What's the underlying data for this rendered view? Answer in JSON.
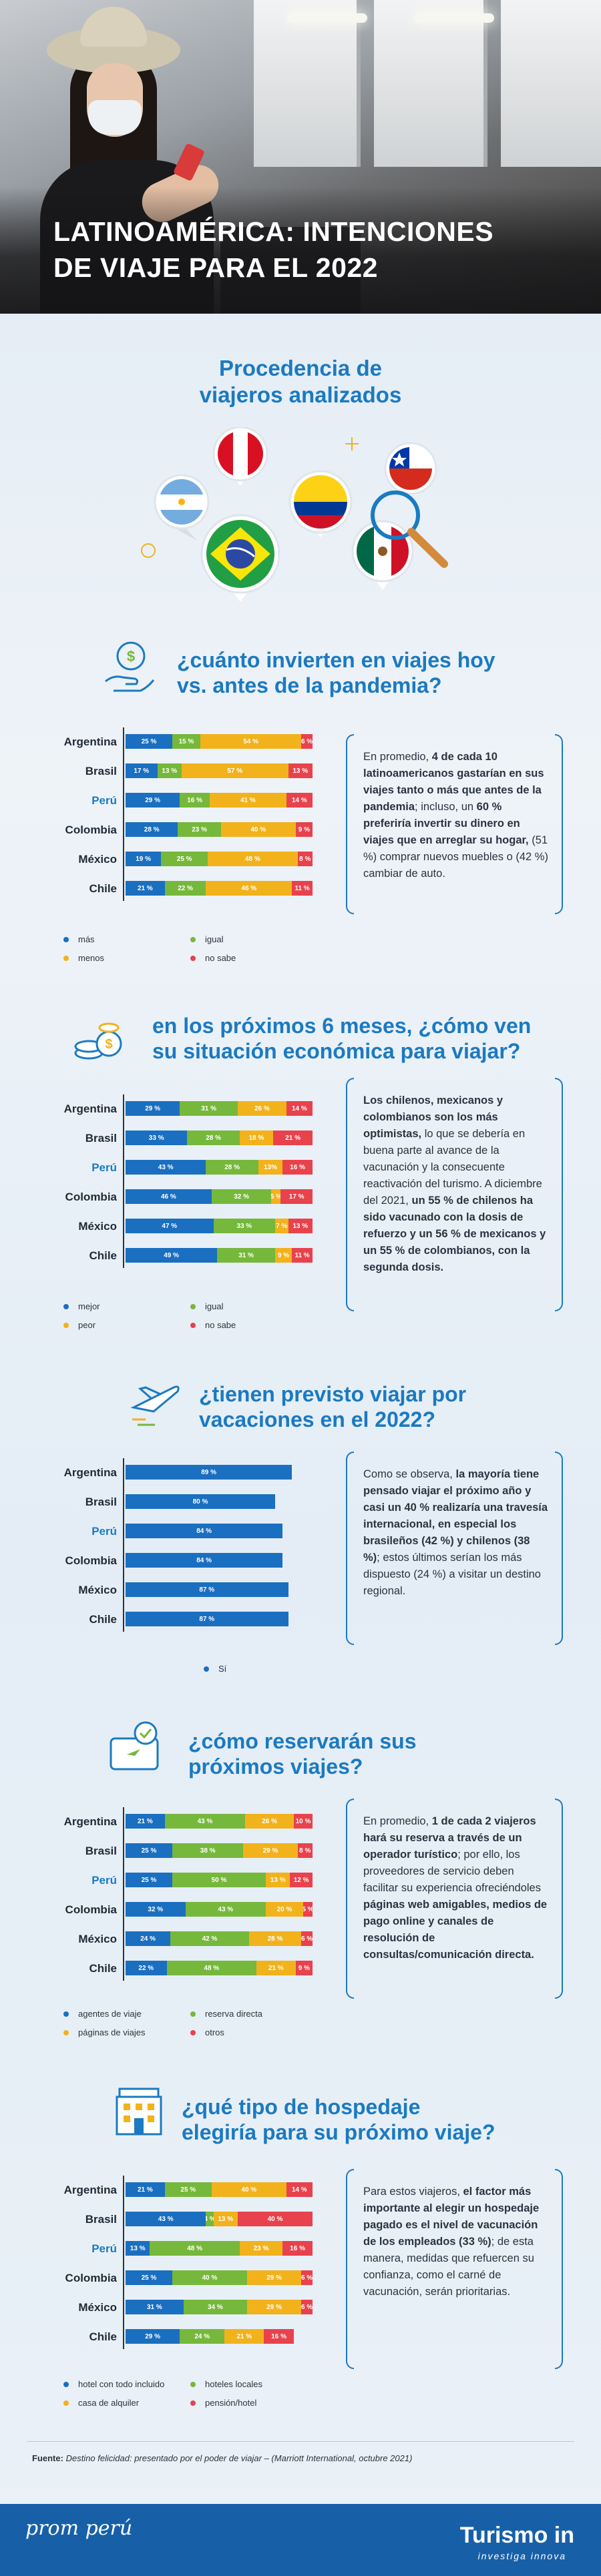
{
  "hero": {
    "title_line1": "LATINOAMÉRICA: INTENCIONES",
    "title_line2": "DE VIAJE PARA EL 2022"
  },
  "origin": {
    "title_line1": "Procedencia de",
    "title_line2": "viajeros analizados",
    "flags": [
      "argentina-flag",
      "peru-flag",
      "colombia-flag",
      "chile-flag",
      "brasil-flag",
      "mexico-flag"
    ]
  },
  "colors": {
    "blue": "#1a6fc0",
    "green": "#76b83b",
    "yellow": "#f2b21c",
    "red": "#e8424c",
    "title": "#1b7ac1"
  },
  "chart_data": [
    {
      "type": "bar",
      "title": "¿cuánto invierten en viajes hoy vs. antes de la pandemia?",
      "categories": [
        "Argentina",
        "Brasil",
        "Perú",
        "Colombia",
        "México",
        "Chile"
      ],
      "series": [
        {
          "name": "más",
          "values": [
            25,
            17,
            29,
            28,
            19,
            21
          ]
        },
        {
          "name": "igual",
          "values": [
            15,
            13,
            16,
            23,
            25,
            22
          ]
        },
        {
          "name": "menos",
          "values": [
            54,
            57,
            41,
            40,
            48,
            46
          ]
        },
        {
          "name": "no sabe",
          "values": [
            6,
            13,
            14,
            9,
            8,
            11
          ]
        }
      ],
      "labels": [
        [
          "25 %",
          "15 %",
          "54 %",
          "6 %"
        ],
        [
          "17 %",
          "13 %",
          "57 %",
          "13 %"
        ],
        [
          "29 %",
          "16 %",
          "41 %",
          "14 %"
        ],
        [
          "28 %",
          "23 %",
          "40 %",
          "9 %"
        ],
        [
          "19 %",
          "25 %",
          "48 %",
          "8 %"
        ],
        [
          "21 %",
          "22 %",
          "46 %",
          "11 %"
        ]
      ]
    },
    {
      "type": "bar",
      "title": "en los próximos 6 meses, ¿cómo ven su situación económica para viajar?",
      "categories": [
        "Argentina",
        "Brasil",
        "Perú",
        "Colombia",
        "México",
        "Chile"
      ],
      "series": [
        {
          "name": "mejor",
          "values": [
            29,
            33,
            43,
            46,
            47,
            49
          ]
        },
        {
          "name": "igual",
          "values": [
            31,
            28,
            28,
            32,
            33,
            31
          ]
        },
        {
          "name": "peor",
          "values": [
            26,
            18,
            13,
            5,
            7,
            9
          ]
        },
        {
          "name": "no sabe",
          "values": [
            14,
            21,
            16,
            17,
            13,
            11
          ]
        }
      ],
      "labels": [
        [
          "29 %",
          "31 %",
          "26 %",
          "14 %"
        ],
        [
          "33 %",
          "28 %",
          "18 %",
          "21 %"
        ],
        [
          "43 %",
          "28 %",
          "13%",
          "16 %"
        ],
        [
          "46 %",
          "32 %",
          "5 %",
          "17 %"
        ],
        [
          "47 %",
          "33 %",
          "7 %",
          "13 %"
        ],
        [
          "49 %",
          "31 %",
          "9 %",
          "11 %"
        ]
      ]
    },
    {
      "type": "bar",
      "title": "¿tienen previsto viajar por vacaciones en el 2022?",
      "categories": [
        "Argentina",
        "Brasil",
        "Perú",
        "Colombia",
        "México",
        "Chile"
      ],
      "series": [
        {
          "name": "Sí",
          "values": [
            89,
            80,
            84,
            84,
            87,
            87
          ]
        }
      ],
      "labels": [
        [
          "89 %"
        ],
        [
          "80 %"
        ],
        [
          "84 %"
        ],
        [
          "84 %"
        ],
        [
          "87 %"
        ],
        [
          "87 %"
        ]
      ]
    },
    {
      "type": "bar",
      "title": "¿cómo reservarán sus próximos viajes?",
      "categories": [
        "Argentina",
        "Brasil",
        "Perú",
        "Colombia",
        "México",
        "Chile"
      ],
      "series": [
        {
          "name": "agentes de viaje",
          "values": [
            21,
            25,
            25,
            32,
            24,
            22
          ]
        },
        {
          "name": "reserva directa",
          "values": [
            43,
            38,
            50,
            43,
            42,
            48
          ]
        },
        {
          "name": "páginas de viajes",
          "values": [
            26,
            29,
            13,
            20,
            28,
            21
          ]
        },
        {
          "name": "otros",
          "values": [
            10,
            8,
            12,
            5,
            6,
            9
          ]
        }
      ],
      "labels": [
        [
          "21 %",
          "43 %",
          "26 %",
          "10 %"
        ],
        [
          "25 %",
          "38 %",
          "29 %",
          "8 %"
        ],
        [
          "25 %",
          "50 %",
          "13 %",
          "12 %"
        ],
        [
          "32 %",
          "43 %",
          "20 %",
          "5 %"
        ],
        [
          "24 %",
          "42 %",
          "28 %",
          "6 %"
        ],
        [
          "22 %",
          "48 %",
          "21 %",
          "9 %"
        ]
      ]
    },
    {
      "type": "bar",
      "title": "¿qué tipo de hospedaje elegiría para su próximo viaje?",
      "categories": [
        "Argentina",
        "Brasil",
        "Perú",
        "Colombia",
        "México",
        "Chile"
      ],
      "series": [
        {
          "name": "hotel con todo incluido",
          "values": [
            21,
            43,
            13,
            25,
            31,
            29
          ]
        },
        {
          "name": "hoteles locales",
          "values": [
            25,
            4,
            48,
            40,
            34,
            24
          ]
        },
        {
          "name": "casa de alquiler",
          "values": [
            40,
            13,
            23,
            29,
            29,
            21
          ]
        },
        {
          "name": "pensión/hotel",
          "values": [
            14,
            40,
            16,
            6,
            6,
            16
          ]
        }
      ],
      "labels": [
        [
          "21 %",
          "25 %",
          "40 %",
          "14 %"
        ],
        [
          "43 %",
          "4 %",
          "13 %",
          "40 %"
        ],
        [
          "13 %",
          "48 %",
          "23 %",
          "16 %"
        ],
        [
          "25 %",
          "40 %",
          "29 %",
          "6 %"
        ],
        [
          "31 %",
          "34 %",
          "29 %",
          "6 %"
        ],
        [
          "29 %",
          "24 %",
          "21 %",
          "16 %"
        ]
      ]
    }
  ],
  "sections": [
    {
      "title_line1": "¿cuánto invierten en viajes hoy",
      "title_line2": "vs. antes de la pandemia?",
      "legend": [
        "más",
        "igual",
        "menos",
        "no sabe"
      ],
      "note_html": "En promedio, <b>4 de cada 10 latinoamericanos gastarían en sus viajes tanto o más que antes de la pandemia</b>; incluso, un <b>60 % preferiría invertir su dinero en viajes que en arreglar su hogar,</b> (51 %) comprar nuevos muebles o (42 %) cambiar de auto."
    },
    {
      "title_line1": "en los próximos 6 meses, ¿cómo ven",
      "title_line2": "su situación económica para viajar?",
      "legend": [
        "mejor",
        "igual",
        "peor",
        "no sabe"
      ],
      "note_html": "<b>Los chilenos, mexicanos y colombianos son los más optimistas,</b> lo que se debería en buena parte al avance de la vacunación y la consecuente reactivación del turismo. A diciembre del 2021, <b>un 55 % de chilenos ha sido vacunado con la dosis de refuerzo y un 56 % de mexicanos y un 55 % de colombianos, con la segunda dosis.</b>"
    },
    {
      "title_line1": "¿tienen previsto viajar por",
      "title_line2": "vacaciones en el 2022?",
      "legend": [
        "Sí"
      ],
      "note_html": "Como se observa, <b>la mayoría tiene pensado viajar el próximo año y casi un 40 % realizaría una travesía internacional, en especial los brasileños (42 %) y chilenos (38 %)</b>; estos últimos serían los más dispuesto (24 %) a visitar un destino regional."
    },
    {
      "title_line1": "¿cómo reservarán sus",
      "title_line2": "próximos viajes?",
      "legend": [
        "agentes de viaje",
        "reserva directa",
        "páginas de viajes",
        "otros"
      ],
      "note_html": "En promedio, <b>1 de cada 2 viajeros hará su reserva a través de un operador turístico</b>; por ello, los proveedores de servicio deben facilitar su experiencia ofreciéndoles <b>páginas web amigables, medios de pago online y canales de resolución de consultas/comunicación directa.</b>"
    },
    {
      "title_line1": "¿qué tipo de hospedaje",
      "title_line2": "elegiría para su próximo viaje?",
      "legend": [
        "hotel con todo incluido",
        "hoteles locales",
        "casa de alquiler",
        "pensión/hotel"
      ],
      "note_html": "Para estos viajeros, <b>el factor más importante al elegir un hospedaje pagado es el nivel de vacunación de los empleados (33 %)</b>; de esta manera, medidas que refuercen su confianza, como el carné de vacunación, serán prioritarias."
    }
  ],
  "source": {
    "label": "Fuente:",
    "text": "Destino felicidad: presentado por el poder de viajar – (Marriott International, octubre 2021)"
  },
  "footer": {
    "promperu": "prom perú",
    "turismo": "Turismo in",
    "turismo_sub": "investiga innova"
  }
}
